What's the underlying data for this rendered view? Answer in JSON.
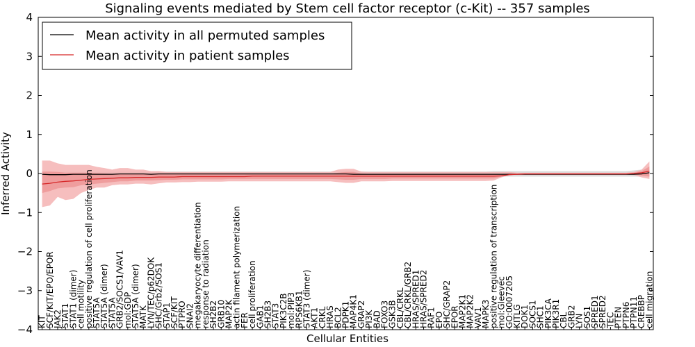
{
  "chart_data": {
    "type": "line",
    "title": "Signaling events mediated by Stem cell factor receptor (c-Kit) -- 357 samples",
    "xlabel": "Cellular Entities",
    "ylabel": "Inferred Activity",
    "ylim": [
      -4,
      4
    ],
    "yticks": [
      "−4",
      "−3",
      "−2",
      "−1",
      "0",
      "1",
      "2",
      "3",
      "4"
    ],
    "legend": {
      "position": "top-left",
      "entries": [
        "Mean activity in all permuted samples",
        "Mean activity in patient samples"
      ]
    },
    "colors": {
      "permuted": "#000000",
      "patient": "#d62728",
      "patient_band_outer": "#f4b3b3",
      "patient_band_inner": "#ec8f8f",
      "permuted_band": "#d9d9d9"
    },
    "categories": [
      "KIT",
      "SCF/KIT/EPO/EPOR",
      "JAK2",
      "STAT1",
      "STAT1 (dimer)",
      "cell motility",
      "positive regulation of cell proliferation",
      "STAT5A",
      "STAT5A (dimer)",
      "STAT5A",
      "GRB2/SOCS1/VAV1",
      "mol:GDP",
      "STAT5A (dimer)",
      "MATK",
      "LYN/TEC/p62DOK",
      "SHC/Grb2/SOS1",
      "STAP1",
      "SCF/KIT",
      "PTPRO",
      "SNAI2",
      "megakaryocyte differentiation",
      "response to radiation",
      "SH2B2",
      "GRB10",
      "MAP2K",
      "actin filament polymerization",
      "FER",
      "cell proliferation",
      "GAB1",
      "SH2B3",
      "STAT3",
      "PIK3C2B",
      "mol:PIP3",
      "RPS6KB1",
      "STAT3 (dimer)",
      "AKT1",
      "CRKL",
      "HRAS",
      "BCL2",
      "PDPK1",
      "MAP4K1",
      "GRAP2",
      "PI3K",
      "BAD",
      "FOXO3",
      "GSK3B",
      "CBL/CRKL",
      "CBL/CRKL/GRB2",
      "HRAS/SPRED1",
      "HRAS/SPRED2",
      "RAF1",
      "EPO",
      "SHC/GRAP2",
      "EPOR",
      "MAP2K1",
      "MAP2K2",
      "VAV1",
      "MAPK3",
      "positive regulation of transcription",
      "mol:Gleevec",
      "GO:0007205",
      "KITLG",
      "DOK1",
      "SOCS1",
      "SHC1",
      "PIK3CA",
      "PIK3R1",
      "CBL",
      "GRB2",
      "LYN",
      "SOS1",
      "SPRED1",
      "SPRED2",
      "TEC",
      "PTEN",
      "PTPN6",
      "PTPN11",
      "CREBBP",
      "cell migration"
    ],
    "series": [
      {
        "name": "Mean activity in all permuted samples",
        "values": [
          -0.02,
          -0.03,
          -0.03,
          -0.03,
          -0.02,
          -0.02,
          -0.02,
          -0.02,
          -0.02,
          -0.02,
          -0.01,
          -0.01,
          -0.01,
          -0.01,
          -0.02,
          -0.01,
          -0.01,
          -0.01,
          -0.01,
          -0.01,
          -0.01,
          -0.01,
          -0.01,
          -0.01,
          -0.01,
          -0.01,
          -0.01,
          -0.01,
          -0.01,
          -0.01,
          -0.01,
          -0.01,
          -0.01,
          -0.01,
          -0.01,
          -0.01,
          -0.01,
          -0.01,
          -0.01,
          -0.01,
          -0.02,
          -0.02,
          -0.02,
          -0.02,
          -0.02,
          -0.02,
          -0.02,
          -0.02,
          -0.02,
          -0.02,
          -0.02,
          -0.02,
          -0.02,
          -0.02,
          -0.02,
          -0.02,
          -0.02,
          -0.02,
          -0.02,
          -0.02,
          -0.02,
          -0.02,
          -0.02,
          -0.02,
          -0.02,
          -0.02,
          -0.02,
          -0.02,
          -0.02,
          -0.02,
          -0.02,
          -0.02,
          -0.02,
          -0.02,
          -0.02,
          -0.02,
          -0.02,
          -0.01,
          0.02
        ]
      },
      {
        "name": "Mean activity in patient samples",
        "values": [
          -0.27,
          -0.25,
          -0.22,
          -0.2,
          -0.19,
          -0.17,
          -0.15,
          -0.14,
          -0.13,
          -0.12,
          -0.11,
          -0.11,
          -0.1,
          -0.1,
          -0.1,
          -0.09,
          -0.09,
          -0.09,
          -0.08,
          -0.08,
          -0.08,
          -0.08,
          -0.08,
          -0.08,
          -0.08,
          -0.08,
          -0.08,
          -0.07,
          -0.07,
          -0.07,
          -0.07,
          -0.07,
          -0.07,
          -0.07,
          -0.07,
          -0.07,
          -0.07,
          -0.07,
          -0.07,
          -0.07,
          -0.07,
          -0.07,
          -0.07,
          -0.07,
          -0.07,
          -0.07,
          -0.07,
          -0.07,
          -0.07,
          -0.07,
          -0.07,
          -0.07,
          -0.07,
          -0.07,
          -0.07,
          -0.07,
          -0.07,
          -0.07,
          -0.07,
          -0.06,
          -0.03,
          -0.02,
          -0.01,
          -0.01,
          -0.01,
          -0.01,
          -0.01,
          -0.01,
          -0.01,
          -0.01,
          -0.01,
          -0.01,
          -0.01,
          -0.01,
          -0.01,
          -0.01,
          0.0,
          0.02,
          0.06
        ]
      }
    ],
    "bands": {
      "patient_outer_lo": [
        -0.86,
        -0.82,
        -0.6,
        -0.68,
        -0.65,
        -0.5,
        -0.42,
        -0.36,
        -0.36,
        -0.3,
        -0.28,
        -0.28,
        -0.26,
        -0.26,
        -0.28,
        -0.25,
        -0.23,
        -0.23,
        -0.22,
        -0.22,
        -0.21,
        -0.21,
        -0.21,
        -0.21,
        -0.2,
        -0.2,
        -0.2,
        -0.2,
        -0.2,
        -0.2,
        -0.2,
        -0.2,
        -0.2,
        -0.2,
        -0.2,
        -0.2,
        -0.2,
        -0.2,
        -0.22,
        -0.24,
        -0.24,
        -0.2,
        -0.2,
        -0.2,
        -0.2,
        -0.19,
        -0.19,
        -0.19,
        -0.19,
        -0.19,
        -0.19,
        -0.19,
        -0.19,
        -0.19,
        -0.19,
        -0.19,
        -0.19,
        -0.19,
        -0.18,
        -0.1,
        -0.04,
        -0.03,
        -0.03,
        -0.03,
        -0.03,
        -0.03,
        -0.03,
        -0.03,
        -0.03,
        -0.03,
        -0.03,
        -0.03,
        -0.03,
        -0.03,
        -0.03,
        -0.03,
        -0.04,
        -0.1,
        -0.14
      ],
      "patient_outer_hi": [
        0.33,
        0.33,
        0.26,
        0.22,
        0.22,
        0.22,
        0.22,
        0.17,
        0.14,
        0.1,
        0.14,
        0.14,
        0.1,
        0.1,
        0.06,
        0.06,
        0.04,
        0.04,
        0.04,
        0.04,
        0.04,
        0.04,
        0.04,
        0.04,
        0.04,
        0.04,
        0.04,
        0.04,
        0.04,
        0.04,
        0.04,
        0.04,
        0.04,
        0.04,
        0.04,
        0.04,
        0.04,
        0.04,
        0.1,
        0.12,
        0.12,
        0.05,
        0.04,
        0.04,
        0.04,
        0.04,
        0.04,
        0.04,
        0.04,
        0.04,
        0.04,
        0.04,
        0.04,
        0.04,
        0.04,
        0.04,
        0.04,
        0.04,
        0.04,
        0.04,
        0.04,
        0.02,
        0.02,
        0.02,
        0.02,
        0.02,
        0.02,
        0.02,
        0.02,
        0.02,
        0.02,
        0.02,
        0.02,
        0.02,
        0.02,
        0.02,
        0.04,
        0.1,
        0.31
      ],
      "patient_inner_lo": [
        -0.5,
        -0.45,
        -0.38,
        -0.36,
        -0.35,
        -0.3,
        -0.28,
        -0.26,
        -0.24,
        -0.22,
        -0.2,
        -0.2,
        -0.18,
        -0.18,
        -0.18,
        -0.17,
        -0.16,
        -0.16,
        -0.15,
        -0.15,
        -0.15,
        -0.15,
        -0.15,
        -0.15,
        -0.14,
        -0.14,
        -0.14,
        -0.14,
        -0.14,
        -0.14,
        -0.14,
        -0.14,
        -0.14,
        -0.14,
        -0.14,
        -0.14,
        -0.14,
        -0.14,
        -0.15,
        -0.16,
        -0.16,
        -0.14,
        -0.14,
        -0.14,
        -0.14,
        -0.13,
        -0.13,
        -0.13,
        -0.13,
        -0.13,
        -0.13,
        -0.13,
        -0.13,
        -0.13,
        -0.13,
        -0.13,
        -0.13,
        -0.13,
        -0.13,
        -0.08,
        -0.03,
        -0.02,
        -0.02,
        -0.02,
        -0.02,
        -0.02,
        -0.02,
        -0.02,
        -0.02,
        -0.02,
        -0.02,
        -0.02,
        -0.02,
        -0.02,
        -0.02,
        -0.02,
        -0.02,
        -0.05,
        -0.08
      ],
      "patient_inner_hi": [
        0.05,
        0.05,
        0.04,
        0.02,
        0.02,
        0.02,
        0.02,
        0.01,
        0.0,
        -0.01,
        0.0,
        0.0,
        -0.01,
        -0.01,
        -0.02,
        -0.02,
        -0.02,
        -0.02,
        -0.02,
        -0.02,
        -0.02,
        -0.02,
        -0.02,
        -0.02,
        -0.02,
        -0.02,
        -0.02,
        -0.01,
        -0.01,
        -0.01,
        -0.01,
        -0.01,
        -0.01,
        -0.01,
        -0.01,
        -0.01,
        -0.01,
        -0.01,
        0.02,
        0.04,
        0.04,
        0.0,
        -0.01,
        -0.01,
        -0.01,
        -0.01,
        -0.01,
        -0.01,
        -0.01,
        -0.01,
        -0.01,
        -0.01,
        -0.01,
        -0.01,
        -0.01,
        -0.01,
        -0.01,
        -0.01,
        -0.01,
        -0.01,
        0.0,
        0.0,
        0.0,
        0.0,
        0.0,
        0.0,
        0.0,
        0.0,
        0.0,
        0.0,
        0.0,
        0.0,
        0.0,
        0.0,
        0.0,
        0.0,
        0.02,
        0.06,
        0.18
      ],
      "permuted_lo": [
        -0.08,
        -0.08,
        -0.08,
        -0.08,
        -0.07,
        -0.07,
        -0.07,
        -0.07,
        -0.07,
        -0.07,
        -0.06,
        -0.06,
        -0.06,
        -0.06,
        -0.07,
        -0.06,
        -0.06,
        -0.06,
        -0.06,
        -0.06,
        -0.06,
        -0.06,
        -0.06,
        -0.06,
        -0.06,
        -0.06,
        -0.06,
        -0.06,
        -0.06,
        -0.06,
        -0.06,
        -0.06,
        -0.06,
        -0.06,
        -0.06,
        -0.06,
        -0.06,
        -0.06,
        -0.06,
        -0.06,
        -0.07,
        -0.07,
        -0.07,
        -0.07,
        -0.07,
        -0.07,
        -0.07,
        -0.07,
        -0.07,
        -0.07,
        -0.07,
        -0.07,
        -0.07,
        -0.07,
        -0.07,
        -0.07,
        -0.07,
        -0.07,
        -0.08,
        -0.08,
        -0.08,
        -0.08,
        -0.08,
        -0.08,
        -0.08,
        -0.08,
        -0.08,
        -0.08,
        -0.08,
        -0.08,
        -0.08,
        -0.08,
        -0.08,
        -0.08,
        -0.08,
        -0.08,
        -0.08,
        -0.08,
        -0.08
      ],
      "permuted_hi": [
        0.04,
        0.04,
        0.04,
        0.04,
        0.04,
        0.04,
        0.04,
        0.04,
        0.04,
        0.04,
        0.05,
        0.05,
        0.05,
        0.05,
        0.04,
        0.05,
        0.05,
        0.05,
        0.05,
        0.05,
        0.05,
        0.05,
        0.05,
        0.05,
        0.05,
        0.05,
        0.05,
        0.05,
        0.05,
        0.05,
        0.05,
        0.05,
        0.05,
        0.05,
        0.05,
        0.05,
        0.05,
        0.05,
        0.05,
        0.05,
        0.05,
        0.05,
        0.05,
        0.05,
        0.05,
        0.05,
        0.05,
        0.05,
        0.05,
        0.05,
        0.05,
        0.05,
        0.05,
        0.05,
        0.05,
        0.05,
        0.05,
        0.05,
        0.06,
        0.06,
        0.06,
        0.06,
        0.06,
        0.06,
        0.06,
        0.06,
        0.06,
        0.06,
        0.06,
        0.06,
        0.06,
        0.06,
        0.06,
        0.06,
        0.06,
        0.06,
        0.08,
        0.1,
        0.12
      ]
    }
  }
}
